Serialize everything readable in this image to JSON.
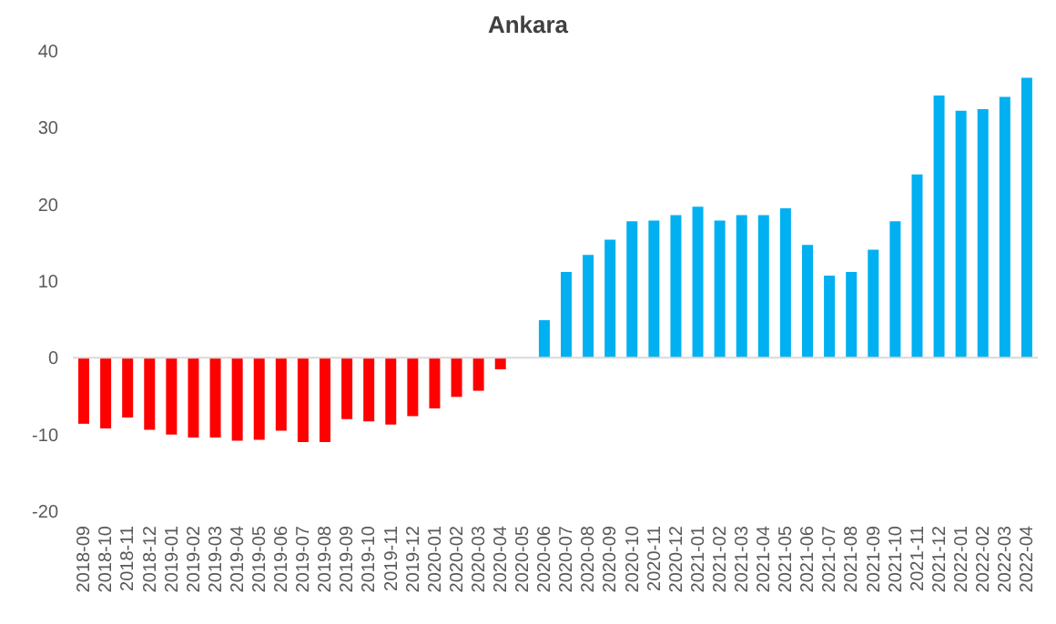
{
  "chart_data": {
    "type": "bar",
    "title": "Ankara",
    "categories": [
      "2018-09",
      "2018-10",
      "2018-11",
      "2018-12",
      "2019-01",
      "2019-02",
      "2019-03",
      "2019-04",
      "2019-05",
      "2019-06",
      "2019-07",
      "2019-08",
      "2019-09",
      "2019-10",
      "2019-11",
      "2019-12",
      "2020-01",
      "2020-02",
      "2020-03",
      "2020-04",
      "2020-05",
      "2020-06",
      "2020-07",
      "2020-08",
      "2020-09",
      "2020-10",
      "2020-11",
      "2020-12",
      "2021-01",
      "2021-02",
      "2021-03",
      "2021-04",
      "2021-05",
      "2021-06",
      "2021-07",
      "2021-08",
      "2021-09",
      "2021-10",
      "2021-11",
      "2021-12",
      "2022-01",
      "2022-02",
      "2022-03",
      "2022-04"
    ],
    "values": [
      -8.6,
      -9.2,
      -7.8,
      -9.4,
      -10,
      -10.4,
      -10.4,
      -10.8,
      -10.7,
      -9.5,
      -11,
      -11,
      -8,
      -8.3,
      -8.7,
      -7.6,
      -6.6,
      -5.1,
      -4.3,
      -1.5,
      null,
      4.9,
      11.2,
      13.4,
      15.4,
      17.8,
      17.9,
      18.6,
      19.7,
      17.9,
      18.6,
      18.6,
      19.5,
      14.7,
      10.7,
      11.2,
      14.1,
      17.8,
      23.9,
      34.2,
      32.2,
      32.4,
      34,
      36.5
    ],
    "colors": [
      "#ff0000",
      "#ff0000",
      "#ff0000",
      "#ff0000",
      "#ff0000",
      "#ff0000",
      "#ff0000",
      "#ff0000",
      "#ff0000",
      "#ff0000",
      "#ff0000",
      "#ff0000",
      "#ff0000",
      "#ff0000",
      "#ff0000",
      "#ff0000",
      "#ff0000",
      "#ff0000",
      "#ff0000",
      "#ff0000",
      "#00b0f0",
      "#00b0f0",
      "#00b0f0",
      "#00b0f0",
      "#00b0f0",
      "#00b0f0",
      "#00b0f0",
      "#00b0f0",
      "#00b0f0",
      "#00b0f0",
      "#00b0f0",
      "#00b0f0",
      "#00b0f0",
      "#00b0f0",
      "#00b0f0",
      "#00b0f0",
      "#00b0f0",
      "#00b0f0",
      "#00b0f0",
      "#00b0f0",
      "#00b0f0",
      "#00b0f0",
      "#00b0f0",
      "#00b0f0"
    ],
    "ylim": [
      -20,
      40
    ],
    "yticks": [
      -20,
      -10,
      0,
      10,
      20,
      30,
      40
    ],
    "ref_lines": [
      {
        "axis": "y",
        "value": 0,
        "color": "#d9d9d9"
      }
    ],
    "grid": false,
    "legend": false
  }
}
